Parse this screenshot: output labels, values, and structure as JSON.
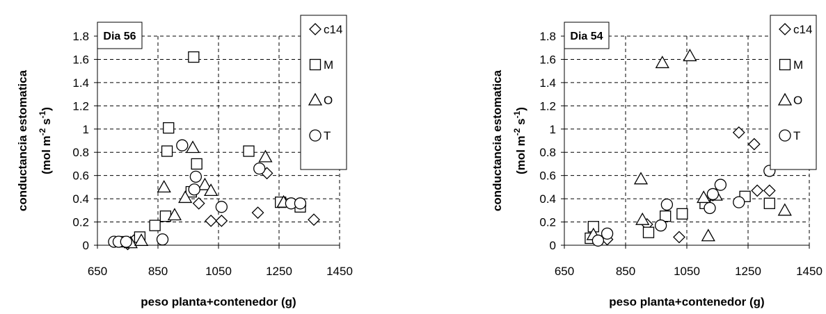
{
  "chart_data": [
    {
      "type": "scatter",
      "title": "Dia 56",
      "xlabel": "peso planta+contenedor (g)",
      "ylabel_line1": "conductancia estomatica",
      "ylabel_line2": {
        "pre": "(mol m",
        "sup1": "-2",
        "mid": " s",
        "sup2": "-1",
        "post": ")"
      },
      "xlim": [
        650,
        1450
      ],
      "ylim": [
        0,
        1.8
      ],
      "xticks": [
        "650",
        "850",
        "1050",
        "1250",
        "1450"
      ],
      "yticks": [
        "0",
        "0.2",
        "0.4",
        "0.6",
        "0.8",
        "1",
        "1.2",
        "1.4",
        "1.6",
        "1.8"
      ],
      "legend_position": "right",
      "series": [
        {
          "name": "c14",
          "marker": "diamond",
          "points": [
            [
              750,
              0.01
            ],
            [
              770,
              0.04
            ],
            [
              985,
              0.36
            ],
            [
              1025,
              0.21
            ],
            [
              1060,
              0.21
            ],
            [
              1180,
              0.28
            ],
            [
              1210,
              0.62
            ],
            [
              1320,
              0.34
            ],
            [
              1365,
              0.22
            ]
          ]
        },
        {
          "name": "M",
          "marker": "square",
          "points": [
            [
              735,
              0.03
            ],
            [
              790,
              0.07
            ],
            [
              840,
              0.17
            ],
            [
              875,
              0.25
            ],
            [
              880,
              0.81
            ],
            [
              885,
              1.01
            ],
            [
              960,
              0.46
            ],
            [
              968,
              1.62
            ],
            [
              978,
              0.7
            ],
            [
              1150,
              0.81
            ],
            [
              1255,
              0.37
            ],
            [
              1320,
              0.33
            ]
          ]
        },
        {
          "name": "O",
          "marker": "triangle",
          "points": [
            [
              760,
              0.02
            ],
            [
              795,
              0.04
            ],
            [
              870,
              0.5
            ],
            [
              905,
              0.26
            ],
            [
              940,
              0.41
            ],
            [
              965,
              0.84
            ],
            [
              1005,
              0.52
            ],
            [
              1025,
              0.47
            ],
            [
              1205,
              0.76
            ],
            [
              1265,
              0.37
            ]
          ]
        },
        {
          "name": "T",
          "marker": "circle",
          "points": [
            [
              705,
              0.03
            ],
            [
              720,
              0.03
            ],
            [
              745,
              0.03
            ],
            [
              865,
              0.05
            ],
            [
              930,
              0.86
            ],
            [
              970,
              0.48
            ],
            [
              975,
              0.59
            ],
            [
              1060,
              0.33
            ],
            [
              1185,
              0.66
            ],
            [
              1290,
              0.36
            ],
            [
              1320,
              0.36
            ]
          ]
        }
      ]
    },
    {
      "type": "scatter",
      "title": "Dia 54",
      "xlabel": "peso planta+contenedor (g)",
      "ylabel_line1": "conductancia estomatica",
      "ylabel_line2": {
        "pre": "(mol m",
        "sup1": "-2",
        "mid": " s",
        "sup2": "-1",
        "post": ")"
      },
      "xlim": [
        650,
        1450
      ],
      "ylim": [
        0,
        1.8
      ],
      "xticks": [
        "650",
        "850",
        "1050",
        "1250",
        "1450"
      ],
      "yticks": [
        "0",
        "0.2",
        "0.4",
        "0.6",
        "0.8",
        "1",
        "1.2",
        "1.4",
        "1.6",
        "1.8"
      ],
      "legend_position": "right",
      "series": [
        {
          "name": "c14",
          "marker": "diamond",
          "points": [
            [
              790,
              0.05
            ],
            [
              920,
              0.18
            ],
            [
              1025,
              0.07
            ],
            [
              1135,
              0.43
            ],
            [
              1220,
              0.97
            ],
            [
              1270,
              0.87
            ],
            [
              1280,
              0.47
            ],
            [
              1320,
              0.47
            ]
          ]
        },
        {
          "name": "M",
          "marker": "square",
          "points": [
            [
              735,
              0.06
            ],
            [
              745,
              0.16
            ],
            [
              925,
              0.11
            ],
            [
              980,
              0.25
            ],
            [
              1035,
              0.27
            ],
            [
              1110,
              0.36
            ],
            [
              1240,
              0.42
            ],
            [
              1320,
              0.36
            ]
          ]
        },
        {
          "name": "O",
          "marker": "triangle",
          "points": [
            [
              745,
              0.09
            ],
            [
              900,
              0.57
            ],
            [
              905,
              0.22
            ],
            [
              970,
              1.57
            ],
            [
              1060,
              1.63
            ],
            [
              1105,
              0.41
            ],
            [
              1120,
              0.08
            ],
            [
              1145,
              0.43
            ],
            [
              1370,
              0.3
            ]
          ]
        },
        {
          "name": "T",
          "marker": "circle",
          "points": [
            [
              760,
              0.04
            ],
            [
              790,
              0.1
            ],
            [
              965,
              0.17
            ],
            [
              985,
              0.35
            ],
            [
              1125,
              0.32
            ],
            [
              1135,
              0.44
            ],
            [
              1160,
              0.52
            ],
            [
              1220,
              0.37
            ],
            [
              1320,
              0.64
            ]
          ]
        }
      ]
    }
  ]
}
